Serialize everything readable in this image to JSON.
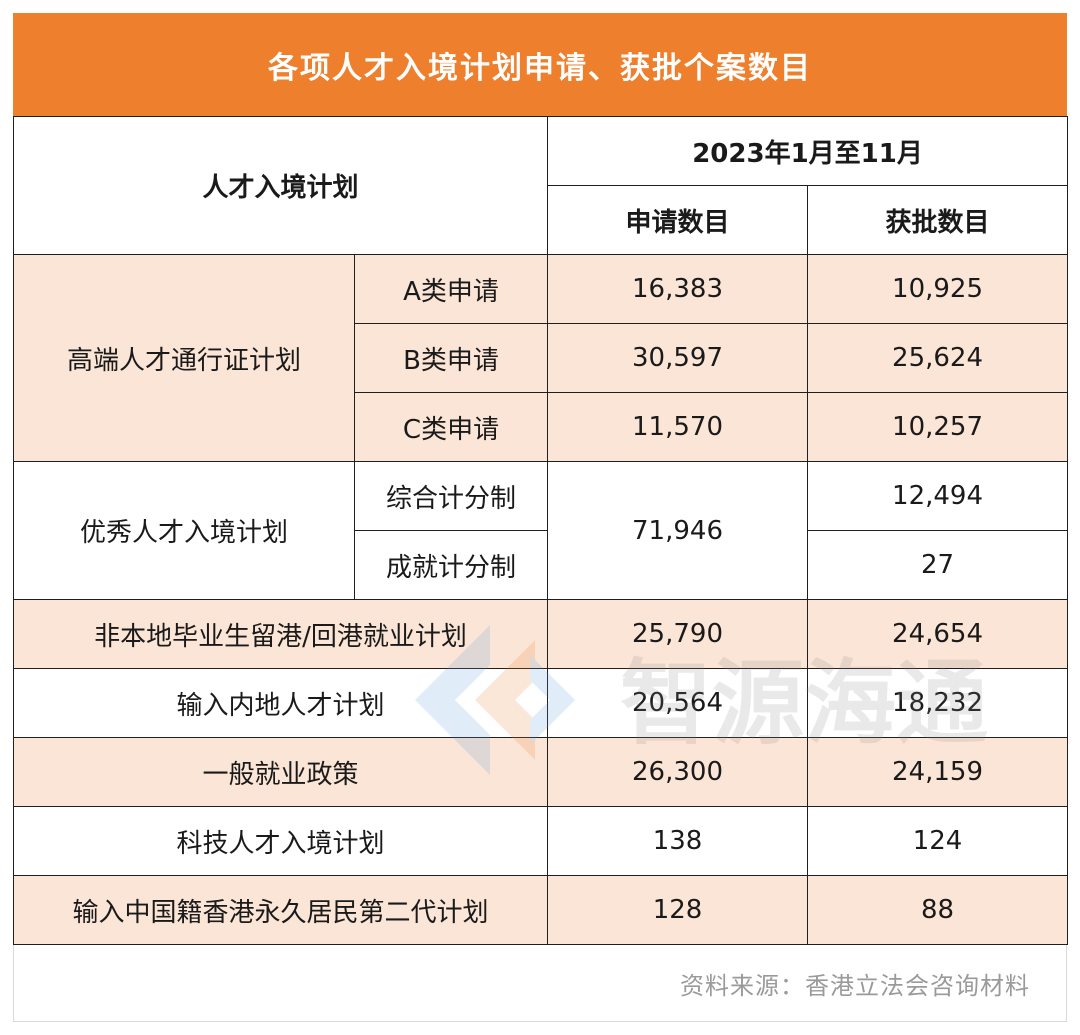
{
  "title": "各项人才入境计划申请、获批个案数目",
  "header": {
    "plan": "人才入境计划",
    "period": "2023年1月至11月",
    "applications": "申请数目",
    "approvals": "获批数目"
  },
  "rows": {
    "r1": {
      "scheme": "高端人才通行证计划",
      "sub": "A类申请",
      "applied": "16,383",
      "approved": "10,925"
    },
    "r2": {
      "sub": "B类申请",
      "applied": "30,597",
      "approved": "25,624"
    },
    "r3": {
      "sub": "C类申请",
      "applied": "11,570",
      "approved": "10,257"
    },
    "r4": {
      "scheme": "优秀人才入境计划",
      "sub": "综合计分制",
      "applied": "71,946",
      "approved": "12,494"
    },
    "r5": {
      "sub": "成就计分制",
      "approved": "27"
    },
    "r6": {
      "scheme": "非本地毕业生留港/回港就业计划",
      "applied": "25,790",
      "approved": "24,654"
    },
    "r7": {
      "scheme": "输入内地人才计划",
      "applied": "20,564",
      "approved": "18,232"
    },
    "r8": {
      "scheme": "一般就业政策",
      "applied": "26,300",
      "approved": "24,159"
    },
    "r9": {
      "scheme": "科技人才入境计划",
      "applied": "138",
      "approved": "124"
    },
    "r10": {
      "scheme": "输入中国籍香港永久居民第二代计划",
      "applied": "128",
      "approved": "88"
    }
  },
  "watermark": {
    "text": "智源海通"
  },
  "source": "资料来源：香港立法会咨询材料",
  "colors": {
    "accent": "#ee7f2d",
    "shade": "#fbe5d6"
  }
}
